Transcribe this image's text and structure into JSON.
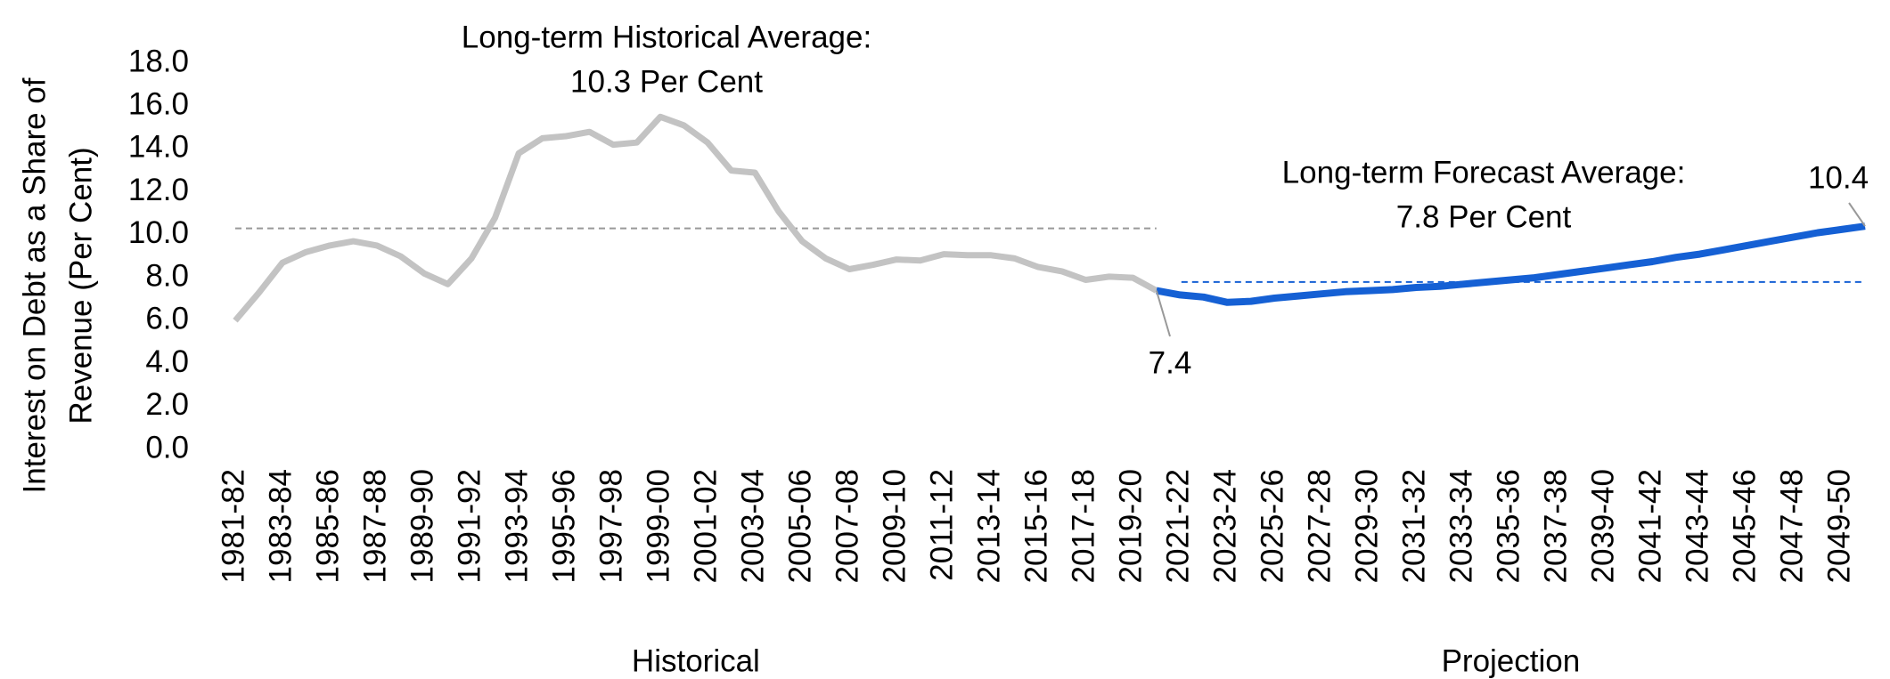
{
  "chart_data": {
    "type": "line",
    "y_title": [
      "Interest on Debt as a Share of",
      "Revenue (Per Cent)"
    ],
    "categories": [
      "1981-82",
      null,
      "1983-84",
      null,
      "1985-86",
      null,
      "1987-88",
      null,
      "1989-90",
      null,
      "1991-92",
      null,
      "1993-94",
      null,
      "1995-96",
      null,
      "1997-98",
      null,
      "1999-00",
      null,
      "2001-02",
      null,
      "2003-04",
      null,
      "2005-06",
      null,
      "2007-08",
      null,
      "2009-10",
      null,
      "2011-12",
      null,
      "2013-14",
      null,
      "2015-16",
      null,
      "2017-18",
      null,
      "2019-20",
      null,
      "2021-22",
      null,
      "2023-24",
      null,
      "2025-26",
      null,
      "2027-28",
      null,
      "2029-30",
      null,
      "2031-32",
      null,
      "2033-34",
      null,
      "2035-36",
      null,
      "2037-38",
      null,
      "2039-40",
      null,
      "2041-42",
      null,
      "2043-44",
      null,
      "2045-46",
      null,
      "2047-48",
      null,
      "2049-50",
      null
    ],
    "series": [
      {
        "name": "Historical",
        "color": "#c3c3c3",
        "values": [
          6.0,
          7.3,
          8.7,
          9.2,
          9.5,
          9.7,
          9.5,
          9.0,
          8.2,
          7.7,
          8.9,
          10.8,
          13.8,
          14.5,
          14.6,
          14.8,
          14.2,
          14.3,
          15.5,
          15.1,
          14.3,
          13.0,
          12.9,
          11.1,
          9.7,
          8.9,
          8.4,
          8.6,
          8.85,
          8.8,
          9.1,
          9.05,
          9.05,
          8.9,
          8.5,
          8.3,
          7.9,
          8.05,
          8.0,
          7.4,
          null,
          null,
          null,
          null,
          null,
          null,
          null,
          null,
          null,
          null,
          null,
          null,
          null,
          null,
          null,
          null,
          null,
          null,
          null,
          null,
          null,
          null,
          null,
          null,
          null,
          null,
          null,
          null,
          null,
          null
        ]
      },
      {
        "name": "Projection",
        "color": "#1560d4",
        "values": [
          null,
          null,
          null,
          null,
          null,
          null,
          null,
          null,
          null,
          null,
          null,
          null,
          null,
          null,
          null,
          null,
          null,
          null,
          null,
          null,
          null,
          null,
          null,
          null,
          null,
          null,
          null,
          null,
          null,
          null,
          null,
          null,
          null,
          null,
          null,
          null,
          null,
          null,
          null,
          7.4,
          7.2,
          7.1,
          6.85,
          6.9,
          7.05,
          7.15,
          7.25,
          7.35,
          7.4,
          7.45,
          7.55,
          7.6,
          7.7,
          7.8,
          7.9,
          8.0,
          8.15,
          8.3,
          8.45,
          8.6,
          8.75,
          8.95,
          9.1,
          9.3,
          9.5,
          9.7,
          9.9,
          10.1,
          10.25,
          10.4
        ]
      }
    ],
    "reference_lines": [
      {
        "value": 10.3,
        "color": "#999999",
        "label": [
          "Long-term Historical Average:",
          "10.3 Per Cent"
        ]
      },
      {
        "value": 7.8,
        "color": "#1560d4",
        "label": [
          "Long-term Forecast Average:",
          "7.8 Per Cent"
        ]
      }
    ],
    "ylim": [
      0,
      18
    ],
    "yticks": [
      {
        "value": 0,
        "label": "0.0"
      },
      {
        "value": 2,
        "label": "2.0"
      },
      {
        "value": 4,
        "label": "4.0"
      },
      {
        "value": 6,
        "label": "6.0"
      },
      {
        "value": 8,
        "label": "8.0"
      },
      {
        "value": 10,
        "label": "10.0"
      },
      {
        "value": 12,
        "label": "12.0"
      },
      {
        "value": 14,
        "label": "14.0"
      },
      {
        "value": 16,
        "label": "16.0"
      },
      {
        "value": 18,
        "label": "18.0"
      }
    ],
    "grid": false
  }
}
